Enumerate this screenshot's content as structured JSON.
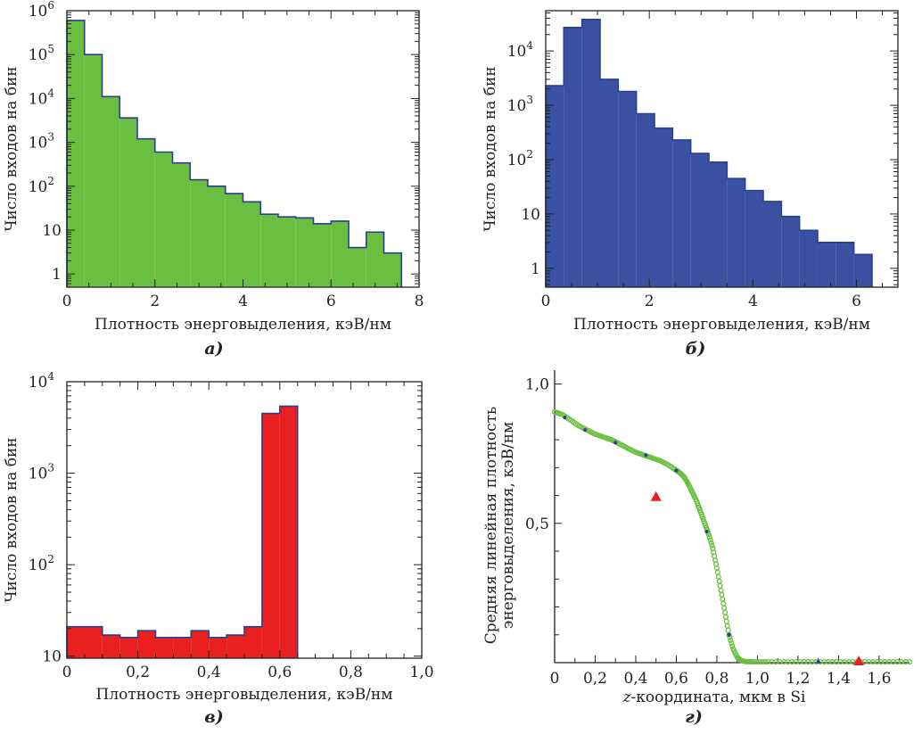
{
  "chart_data": [
    {
      "id": "a",
      "type": "bar",
      "subtype": "histogram",
      "scale": "log",
      "caption": "а)",
      "xlabel": "Плотность энерговыделения, кэВ/нм",
      "ylabel": "Число входов на бин",
      "xlim": [
        0,
        8
      ],
      "ylim": [
        0.5,
        1000000
      ],
      "xticks": [
        0,
        2,
        4,
        6,
        8
      ],
      "xtick_labels": [
        "0",
        "2",
        "4",
        "6",
        "8"
      ],
      "yticks": [
        1,
        10,
        100,
        1000,
        10000,
        100000,
        1000000
      ],
      "ytick_labels": [
        {
          "base": "1",
          "exp": ""
        },
        {
          "base": "10",
          "exp": ""
        },
        {
          "base": "10",
          "exp": "2"
        },
        {
          "base": "10",
          "exp": "3"
        },
        {
          "base": "10",
          "exp": "4"
        },
        {
          "base": "10",
          "exp": "5"
        },
        {
          "base": "10",
          "exp": "6"
        }
      ],
      "bin_edges": [
        0,
        0.4,
        0.8,
        1.2,
        1.6,
        2.0,
        2.4,
        2.8,
        3.2,
        3.6,
        4.0,
        4.4,
        4.8,
        5.2,
        5.6,
        6.0,
        6.4,
        6.8,
        7.2,
        7.6
      ],
      "values": [
        600000,
        100000,
        11000,
        3600,
        1200,
        600,
        340,
        140,
        100,
        68,
        44,
        23,
        20,
        19,
        14,
        16,
        4,
        9,
        3
      ],
      "fill": "#6abf40",
      "edge": "#2a3f8f"
    },
    {
      "id": "b",
      "type": "bar",
      "subtype": "histogram",
      "scale": "log",
      "caption": "б)",
      "xlabel": "Плотность энерговыделения, кэВ/нм",
      "ylabel": "Число входов на бин",
      "xlim": [
        0,
        6.8
      ],
      "ylim": [
        0.45,
        55000
      ],
      "xticks": [
        0,
        2,
        4,
        6
      ],
      "xtick_labels": [
        "0",
        "2",
        "4",
        "6"
      ],
      "yticks": [
        1,
        10,
        100,
        1000,
        10000
      ],
      "ytick_labels": [
        {
          "base": "1",
          "exp": ""
        },
        {
          "base": "10",
          "exp": ""
        },
        {
          "base": "10",
          "exp": "2"
        },
        {
          "base": "10",
          "exp": "3"
        },
        {
          "base": "10",
          "exp": "4"
        }
      ],
      "bin_edges": [
        0,
        0.35,
        0.7,
        1.05,
        1.4,
        1.75,
        2.1,
        2.45,
        2.8,
        3.15,
        3.5,
        3.85,
        4.2,
        4.55,
        4.9,
        5.25,
        5.6,
        5.95,
        6.3
      ],
      "values": [
        2300,
        27000,
        38000,
        3000,
        1800,
        700,
        380,
        230,
        130,
        90,
        45,
        27,
        17,
        9,
        5,
        3,
        3,
        1.8
      ],
      "fill": "#3a50a0",
      "edge": "#2a3f8f"
    },
    {
      "id": "c",
      "type": "bar",
      "subtype": "histogram",
      "scale": "log",
      "caption": "в)",
      "xlabel": "Плотность энерговыделения, кэВ/нм",
      "ylabel": "Число входов на бин",
      "xlim": [
        0,
        1.0
      ],
      "ylim": [
        9.5,
        10000
      ],
      "xticks": [
        0,
        0.2,
        0.4,
        0.6,
        0.8,
        1.0
      ],
      "xtick_labels": [
        "0",
        "0,2",
        "0,4",
        "0,6",
        "0,8",
        "1,0"
      ],
      "yticks": [
        10,
        100,
        1000,
        10000
      ],
      "ytick_labels": [
        {
          "base": "10",
          "exp": ""
        },
        {
          "base": "10",
          "exp": "2"
        },
        {
          "base": "10",
          "exp": "3"
        },
        {
          "base": "10",
          "exp": "4"
        }
      ],
      "bin_edges": [
        0,
        0.1,
        0.15,
        0.2,
        0.25,
        0.3,
        0.35,
        0.4,
        0.45,
        0.5,
        0.55,
        0.6,
        0.65
      ],
      "values": [
        21,
        17,
        16,
        19,
        16,
        16,
        19,
        16,
        17,
        21,
        4500,
        5400
      ],
      "fill": "#e82020",
      "edge": "#2a3f8f"
    },
    {
      "id": "g",
      "type": "scatter",
      "caption": "г)",
      "xlabel": "z-координата, мкм в Si",
      "xlabel_italic_prefix": "z",
      "xlabel_rest": "-координата, мкм в Si",
      "ylabel_line1": "Средняя линейная плотность",
      "ylabel_line2": "энерговыделения, кэВ/нм",
      "xlim": [
        0,
        1.75
      ],
      "ylim": [
        0,
        1.05
      ],
      "xticks": [
        0,
        0.2,
        0.4,
        0.6,
        0.8,
        1.0,
        1.2,
        1.4,
        1.6
      ],
      "xtick_labels": [
        "0",
        "0,2",
        "0,4",
        "0,6",
        "0,8",
        "1,0",
        "1,2",
        "1,4",
        "1,6"
      ],
      "yticks": [
        0.5,
        1.0
      ],
      "ytick_labels": [
        "0,5",
        "1,0"
      ],
      "series": [
        {
          "name": "curve",
          "marker": "circle",
          "color": "#6abf40",
          "x": [
            0,
            0.04,
            0.08,
            0.12,
            0.16,
            0.2,
            0.24,
            0.28,
            0.32,
            0.36,
            0.4,
            0.44,
            0.48,
            0.52,
            0.56,
            0.6,
            0.62,
            0.64,
            0.66,
            0.68,
            0.7,
            0.72,
            0.74,
            0.76,
            0.78,
            0.8,
            0.82,
            0.84,
            0.86,
            0.88,
            0.9,
            0.92,
            0.94,
            0.98,
            1.05,
            1.15,
            1.25,
            1.35,
            1.45,
            1.55,
            1.65,
            1.75
          ],
          "y": [
            0.9,
            0.89,
            0.87,
            0.85,
            0.835,
            0.82,
            0.81,
            0.8,
            0.785,
            0.77,
            0.755,
            0.745,
            0.735,
            0.725,
            0.71,
            0.69,
            0.68,
            0.665,
            0.64,
            0.61,
            0.58,
            0.54,
            0.5,
            0.46,
            0.41,
            0.34,
            0.26,
            0.18,
            0.1,
            0.05,
            0.02,
            0.008,
            0.004,
            0.003,
            0.003,
            0.003,
            0.003,
            0.003,
            0.003,
            0.003,
            0.003,
            0.003
          ]
        },
        {
          "name": "reference",
          "marker": "dot",
          "color": "#2a3f8f",
          "x": [
            0.05,
            0.15,
            0.3,
            0.45,
            0.6,
            0.75,
            0.86,
            1.3,
            1.5
          ],
          "y": [
            0.88,
            0.835,
            0.79,
            0.745,
            0.69,
            0.47,
            0.1,
            0.003,
            0.003
          ]
        },
        {
          "name": "triangles",
          "marker": "triangle",
          "color": "#e82020",
          "x": [
            0.5,
            1.5
          ],
          "y": [
            0.59,
            0.0
          ]
        }
      ]
    }
  ]
}
